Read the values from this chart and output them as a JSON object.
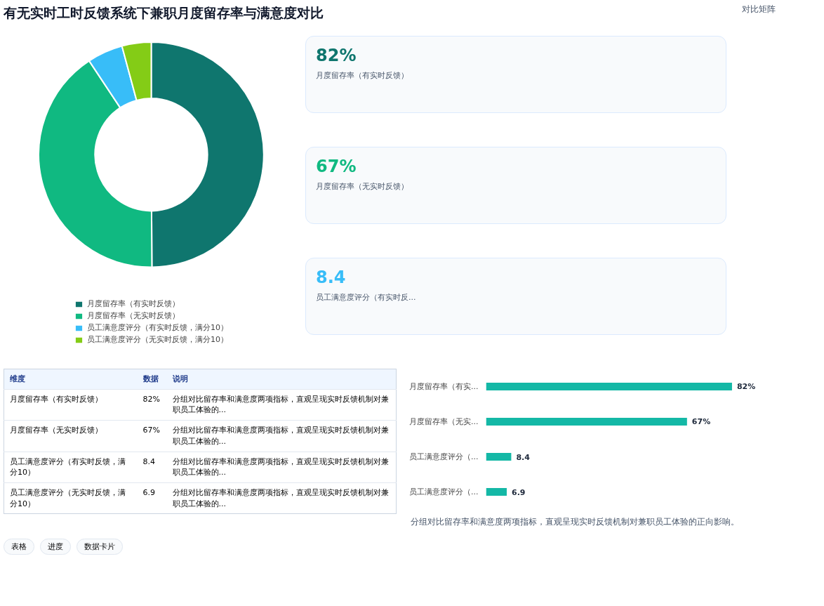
{
  "chart_data": [
    {
      "type": "other",
      "title": "有无实时工时反馈系统下兼职月度留存率与满意度对比",
      "subtitle": "对比矩阵"
    },
    {
      "type": "donut",
      "categories": [
        "月度留存率（有实时反馈）",
        "月度留存率（无实时反馈）",
        "员工满意度评分（有实时反馈，满分10）",
        "员工满意度评分（无实时反馈，满分10）"
      ],
      "values": [
        49.91,
        40.78,
        5.11,
        4.2
      ],
      "colors": [
        "#0f766e",
        "#10b981",
        "#38bdf8",
        "#84cc16"
      ],
      "legend": "bottom"
    },
    {
      "type": "other",
      "annotations": [
        "82%",
        "月度留存率（有实时反馈）",
        "67%",
        "月度留存率（无实时反馈）",
        "8.4",
        "员工满意度评分（有实时反..."
      ],
      "colors": [
        "#0f766e",
        "#10b981",
        "#38bdf8"
      ]
    },
    {
      "type": "other",
      "annotations": [
        "维度",
        "数据",
        "说明",
        "月度留存率（有实时反馈）",
        "82%",
        "分组对比留存率和满意度两项指标，直观呈现实时反馈机制对兼职员工体验的...",
        "月度留存率（无实时反馈）",
        "67%",
        "分组对比留存率和满意度两项指标，直观呈现实时反馈机制对兼职员工体验的...",
        "员工满意度评分（有实时反馈，满分10）",
        "8.4",
        "分组对比留存率和满意度两项指标，直观呈现实时反馈机制对兼职员工体验的...",
        "员工满意度评分（无实时反馈，满分10）",
        "6.9",
        "分组对比留存率和满意度两项指标，直观呈现实时反馈机制对兼职员工体验的..."
      ]
    },
    {
      "type": "bar",
      "orientation": "horizontal",
      "tick_labels": "y",
      "categories": [
        "月度留存率（有实...",
        "月度留存率（无实...",
        "员工满意度评分（...",
        "员工满意度评分（..."
      ],
      "values": [
        82,
        67,
        8.4,
        6.9
      ],
      "value_labels": [
        "82%",
        "67%",
        "8.4",
        "6.9"
      ],
      "color": "#14b8a6",
      "annotations": [
        "分组对比留存率和满意度两项指标，直观呈现实时反馈机制对兼职员工体验的正向影响。",
        "表格",
        "进度",
        "数据卡片"
      ]
    }
  ]
}
